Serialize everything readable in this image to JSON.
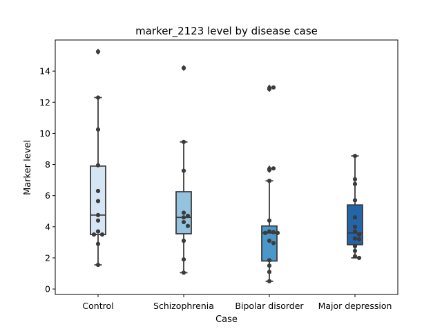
{
  "chart_data": {
    "type": "box",
    "title": "marker_2123 level by disease case",
    "xlabel": "Case",
    "ylabel": "Marker level",
    "ylim": [
      -0.35,
      16.0
    ],
    "yticks": [
      0,
      2,
      4,
      6,
      8,
      10,
      12,
      14
    ],
    "categories": [
      "Control",
      "Schizophrenia",
      "Bipolar disorder",
      "Major depression"
    ],
    "colors": [
      "#d6e5f3",
      "#94c3df",
      "#4a97c9",
      "#2465a8"
    ],
    "edge_color": "#3b3b3b",
    "boxes": [
      {
        "q1": 3.5,
        "median": 4.75,
        "q3": 7.9,
        "whisker_low": 1.55,
        "whisker_high": 12.3,
        "outliers": [
          15.25
        ]
      },
      {
        "q1": 3.55,
        "median": 4.6,
        "q3": 6.25,
        "whisker_low": 1.05,
        "whisker_high": 9.45,
        "outliers": [
          14.2
        ]
      },
      {
        "q1": 1.8,
        "median": 3.6,
        "q3": 4.05,
        "whisker_low": 0.5,
        "whisker_high": 6.95,
        "outliers": [
          7.65,
          7.75,
          12.85,
          12.95
        ]
      },
      {
        "q1": 2.85,
        "median": 3.6,
        "q3": 5.4,
        "whisker_low": 2.0,
        "whisker_high": 8.55,
        "outliers": []
      }
    ],
    "points": [
      [
        15.25,
        12.3,
        10.25,
        7.95,
        6.3,
        5.65,
        4.75,
        4.4,
        3.7,
        3.5,
        3.5,
        2.9,
        1.55
      ],
      [
        14.2,
        9.45,
        7.6,
        4.9,
        4.7,
        4.6,
        4.3,
        4.05,
        3.1,
        1.9,
        1.05
      ],
      [
        12.85,
        12.95,
        7.65,
        7.75,
        6.95,
        4.4,
        3.7,
        3.65,
        3.6,
        3.6,
        3.1,
        2.95,
        1.85,
        1.5,
        1.1,
        0.5
      ],
      [
        8.55,
        7.05,
        6.75,
        5.7,
        4.6,
        4.0,
        3.7,
        3.5,
        3.25,
        3.2,
        2.75,
        2.45,
        2.1,
        2.0
      ]
    ]
  }
}
